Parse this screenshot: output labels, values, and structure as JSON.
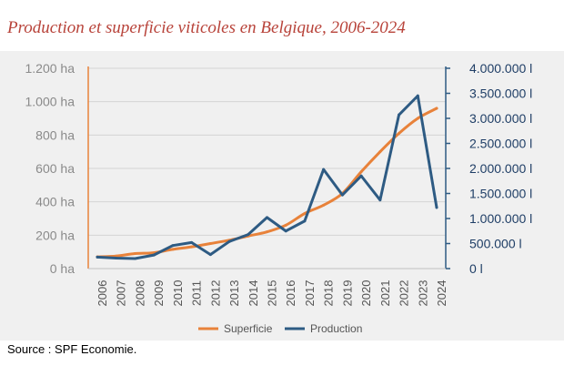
{
  "title": "Production et superficie viticoles en Belgique, 2006-2024",
  "source": "Source : SPF Economie.",
  "chart_data": {
    "type": "line",
    "categories": [
      "2006",
      "2007",
      "2008",
      "2009",
      "2010",
      "2011",
      "2012",
      "2013",
      "2014",
      "2015",
      "2016",
      "2017",
      "2018",
      "2019",
      "2020",
      "2021",
      "2022",
      "2023",
      "2024"
    ],
    "series": [
      {
        "name": "Superficie",
        "axis": "left",
        "color": "#e8823a",
        "values": [
          70,
          75,
          90,
          95,
          115,
          130,
          150,
          170,
          195,
          220,
          260,
          330,
          380,
          450,
          580,
          700,
          810,
          900,
          960
        ]
      },
      {
        "name": "Production",
        "axis": "right",
        "color": "#2e5b83",
        "values": [
          230000,
          210000,
          200000,
          270000,
          460000,
          520000,
          280000,
          540000,
          680000,
          1020000,
          750000,
          950000,
          1980000,
          1470000,
          1850000,
          1370000,
          3070000,
          3450000,
          1220000
        ]
      }
    ],
    "y_left": {
      "min": 0,
      "max": 1200,
      "ticks": [
        "0 ha",
        "200 ha",
        "400 ha",
        "600 ha",
        "800 ha",
        "1.000 ha",
        "1.200 ha"
      ]
    },
    "y_right": {
      "min": 0,
      "max": 4000000,
      "ticks": [
        "0 l",
        "500.000 l",
        "1.000.000 l",
        "1.500.000 l",
        "2.000.000 l",
        "2.500.000 l",
        "3.000.000 l",
        "3.500.000 l",
        "4.000.000 l"
      ]
    },
    "legend": [
      "Superficie",
      "Production"
    ],
    "legend_position": "bottom",
    "grid": true
  }
}
